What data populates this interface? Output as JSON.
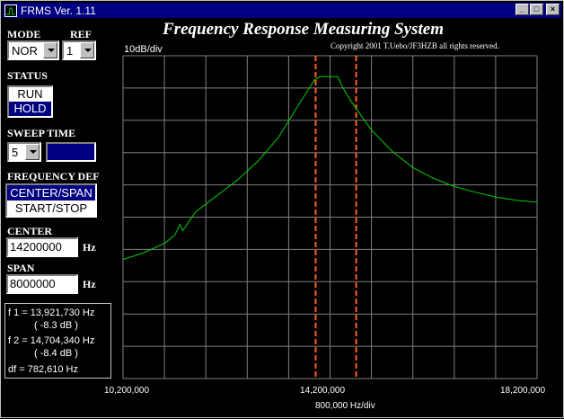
{
  "window": {
    "title": "FRMS Ver. 1.11",
    "minimize": "_",
    "maximize": "□",
    "close": "×"
  },
  "controls": {
    "mode_label": "MODE",
    "mode_value": "NOR",
    "ref_label": "REF",
    "ref_value": "1",
    "status_label": "STATUS",
    "status_options": [
      "RUN",
      "HOLD"
    ],
    "status_selected": "HOLD",
    "sweep_label": "SWEEP TIME",
    "sweep_value": "5",
    "freqdef_label": "FREQUENCY DEF",
    "freqdef_options": [
      "CENTER/SPAN",
      "START/STOP"
    ],
    "freqdef_selected": "CENTER/SPAN",
    "center_label": "CENTER",
    "center_value": "14200000",
    "center_unit": "Hz",
    "span_label": "SPAN",
    "span_value": "8000000",
    "span_unit": "Hz"
  },
  "results": {
    "f1": "f 1 = 13,921,730 Hz",
    "f1_db": "( -8.3 dB )",
    "f2": "f 2 = 14,704,340 Hz",
    "f2_db": "( -8.4 dB )",
    "df": "df = 782,610 Hz"
  },
  "plot": {
    "title": "Frequency Response Measuring System",
    "copyright": "Copyright 2001 T.Uebo/JF3HZB all rights reserved.",
    "y_scale": "10dB/div",
    "x_scale": "800,000 Hz/div",
    "x_left": "10,200,000",
    "x_center": "14,200,000",
    "x_right": "18,200,000",
    "colors": {
      "trace": "#00d000",
      "markers": "#ff6020",
      "grid": "#7f7f7f",
      "background": "#000000"
    }
  },
  "chart_data": {
    "type": "line",
    "xlabel": "800,000 Hz/div",
    "ylabel": "10dB/div",
    "xlim": [
      10200000,
      18200000
    ],
    "ylim": [
      -80,
      0
    ],
    "grid": true,
    "series": [
      {
        "x": [
          10200000,
          10600000,
          11000000,
          11200000,
          11300000,
          11350000,
          11400000,
          11600000,
          12000000,
          12400000,
          12800000,
          13200000,
          13600000,
          13800000,
          13900000,
          14000000,
          14200000,
          14350000,
          14450000,
          14600000,
          14800000,
          15000000,
          15400000,
          15800000,
          16200000,
          16600000,
          17000000,
          17400000,
          17800000,
          18200000
        ],
        "y": [
          -50.5,
          -48.8,
          -46.5,
          -44.5,
          -41.8,
          -43.3,
          -42.5,
          -38.7,
          -34.8,
          -30.9,
          -26.2,
          -20.3,
          -12.0,
          -8.0,
          -6.0,
          -5.2,
          -5.2,
          -5.2,
          -8.0,
          -11.2,
          -14.8,
          -18.4,
          -23.7,
          -27.7,
          -30.4,
          -32.4,
          -33.8,
          -35.0,
          -35.8,
          -36.3
        ]
      }
    ],
    "markers": [
      13921730,
      14704340
    ]
  }
}
